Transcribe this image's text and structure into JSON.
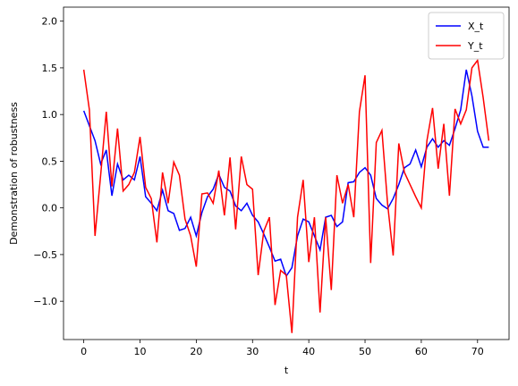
{
  "chart_data": {
    "type": "line",
    "x_label": "t",
    "y_label": "Demonstration of robustness",
    "x": [
      0,
      1,
      2,
      3,
      4,
      5,
      6,
      7,
      8,
      9,
      10,
      11,
      12,
      13,
      14,
      15,
      16,
      17,
      18,
      19,
      20,
      21,
      22,
      23,
      24,
      25,
      26,
      27,
      28,
      29,
      30,
      31,
      32,
      33,
      34,
      35,
      36,
      37,
      38,
      39,
      40,
      41,
      42,
      43,
      44,
      45,
      46,
      47,
      48,
      49,
      50,
      51,
      52,
      53,
      54,
      55,
      56,
      57,
      58,
      59,
      60,
      61,
      62,
      63,
      64,
      65,
      66,
      67,
      68,
      69,
      70,
      71,
      72
    ],
    "series": [
      {
        "name": "X_t",
        "color": "#0000ff",
        "values": [
          1.04,
          0.88,
          0.72,
          0.47,
          0.62,
          0.13,
          0.47,
          0.3,
          0.35,
          0.3,
          0.55,
          0.12,
          0.05,
          -0.03,
          0.19,
          -0.03,
          -0.06,
          -0.24,
          -0.22,
          -0.1,
          -0.3,
          -0.05,
          0.12,
          0.2,
          0.36,
          0.22,
          0.18,
          0.02,
          -0.03,
          0.05,
          -0.08,
          -0.15,
          -0.28,
          -0.42,
          -0.57,
          -0.55,
          -0.73,
          -0.64,
          -0.3,
          -0.12,
          -0.15,
          -0.3,
          -0.45,
          -0.1,
          -0.08,
          -0.2,
          -0.15,
          0.27,
          0.28,
          0.38,
          0.43,
          0.35,
          0.1,
          0.03,
          -0.01,
          0.1,
          0.25,
          0.43,
          0.47,
          0.62,
          0.44,
          0.65,
          0.74,
          0.65,
          0.72,
          0.67,
          0.85,
          1.05,
          1.48,
          1.2,
          0.82,
          0.65,
          0.65
        ]
      },
      {
        "name": "Y_t",
        "color": "#ff0000",
        "values": [
          1.48,
          1.05,
          -0.3,
          0.35,
          1.03,
          0.23,
          0.85,
          0.18,
          0.25,
          0.38,
          0.76,
          0.22,
          0.1,
          -0.37,
          0.38,
          0.05,
          0.49,
          0.35,
          -0.12,
          -0.3,
          -0.63,
          0.15,
          0.16,
          0.05,
          0.4,
          -0.08,
          0.54,
          -0.23,
          0.55,
          0.25,
          0.2,
          -0.72,
          -0.25,
          -0.1,
          -1.04,
          -0.67,
          -0.72,
          -1.34,
          -0.1,
          0.3,
          -0.58,
          -0.1,
          -1.12,
          -0.1,
          -0.88,
          0.35,
          0.05,
          0.25,
          -0.1,
          1.03,
          1.42,
          -0.59,
          0.7,
          0.83,
          0.05,
          -0.51,
          0.69,
          0.38,
          0.25,
          0.12,
          0.0,
          0.72,
          1.07,
          0.42,
          0.9,
          0.13,
          1.06,
          0.9,
          1.05,
          1.5,
          1.58,
          1.18,
          0.72
        ]
      }
    ],
    "xlim": [
      -3.6,
      75.6
    ],
    "ylim": [
      -1.41,
      2.15
    ],
    "xticks": [
      0,
      10,
      20,
      30,
      40,
      50,
      60,
      70
    ],
    "yticks": [
      {
        "value": -1.0,
        "label": "−1.0"
      },
      {
        "value": -0.5,
        "label": "−0.5"
      },
      {
        "value": 0.0,
        "label": "0.0"
      },
      0.5,
      {
        "value": 1.0,
        "label": "1.0"
      },
      1.5,
      {
        "value": 2.0,
        "label": "2.0"
      }
    ],
    "legend": "upper right",
    "grid": false
  }
}
